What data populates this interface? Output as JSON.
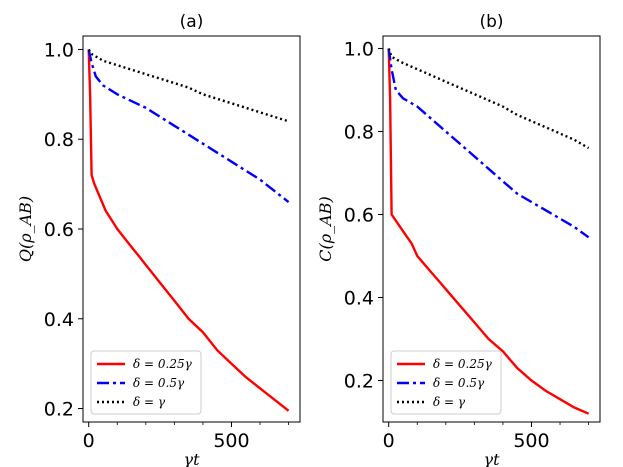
{
  "chart_data": [
    {
      "type": "line",
      "title": "(a)",
      "xlabel": "γt",
      "ylabel": "Q(ρ_AB)",
      "xlim": [
        -20,
        740
      ],
      "ylim": [
        0.17,
        1.03
      ],
      "xticks": [
        0,
        500
      ],
      "xtick_labels": [
        "0",
        "500"
      ],
      "yticks": [
        0.2,
        0.4,
        0.6,
        0.8,
        1.0
      ],
      "ytick_labels": [
        "0.2",
        "0.4",
        "0.6",
        "0.8",
        "1.0"
      ],
      "legend_position": "lower-left",
      "series": [
        {
          "name": "δ = 0.25γ",
          "color": "#ff0000",
          "style": "solid",
          "x": [
            0,
            5,
            10,
            20,
            40,
            60,
            80,
            100,
            125,
            150,
            175,
            200,
            250,
            300,
            350,
            400,
            450,
            500,
            550,
            600,
            650,
            700
          ],
          "values": [
            1.0,
            0.9,
            0.72,
            0.7,
            0.67,
            0.64,
            0.62,
            0.6,
            0.58,
            0.56,
            0.54,
            0.52,
            0.48,
            0.44,
            0.4,
            0.37,
            0.33,
            0.3,
            0.27,
            0.245,
            0.22,
            0.195
          ]
        },
        {
          "name": "δ = 0.5γ",
          "color": "#0000ff",
          "style": "dashdot",
          "x": [
            0,
            10,
            25,
            50,
            100,
            150,
            200,
            250,
            300,
            350,
            400,
            450,
            500,
            550,
            600,
            650,
            700
          ],
          "values": [
            1.0,
            0.97,
            0.94,
            0.92,
            0.9,
            0.885,
            0.87,
            0.85,
            0.83,
            0.81,
            0.79,
            0.77,
            0.75,
            0.73,
            0.71,
            0.685,
            0.66
          ]
        },
        {
          "name": "δ = γ",
          "color": "#000000",
          "style": "dotted",
          "x": [
            0,
            10,
            50,
            100,
            150,
            200,
            250,
            300,
            350,
            400,
            450,
            500,
            550,
            600,
            650,
            700
          ],
          "values": [
            1.0,
            0.99,
            0.975,
            0.965,
            0.955,
            0.945,
            0.935,
            0.925,
            0.915,
            0.9,
            0.89,
            0.88,
            0.87,
            0.86,
            0.85,
            0.84
          ]
        }
      ]
    },
    {
      "type": "line",
      "title": "(b)",
      "xlabel": "γt",
      "ylabel": "C(ρ_AB)",
      "xlim": [
        -20,
        740
      ],
      "ylim": [
        0.1,
        1.03
      ],
      "xticks": [
        0,
        500
      ],
      "xtick_labels": [
        "0",
        "500"
      ],
      "yticks": [
        0.2,
        0.4,
        0.6,
        0.8,
        1.0
      ],
      "ytick_labels": [
        "0.2",
        "0.4",
        "0.6",
        "0.8",
        "1.0"
      ],
      "legend_position": "lower-left",
      "series": [
        {
          "name": "δ = 0.25γ",
          "color": "#ff0000",
          "style": "solid",
          "x": [
            0,
            5,
            10,
            20,
            40,
            60,
            80,
            100,
            125,
            150,
            175,
            200,
            250,
            300,
            350,
            400,
            450,
            500,
            550,
            600,
            650,
            700
          ],
          "values": [
            1.0,
            0.88,
            0.6,
            0.59,
            0.57,
            0.55,
            0.53,
            0.5,
            0.48,
            0.46,
            0.44,
            0.42,
            0.38,
            0.34,
            0.3,
            0.27,
            0.23,
            0.2,
            0.175,
            0.155,
            0.135,
            0.12
          ]
        },
        {
          "name": "δ = 0.5γ",
          "color": "#0000ff",
          "style": "dashdot",
          "x": [
            0,
            10,
            25,
            50,
            100,
            150,
            200,
            250,
            300,
            350,
            400,
            450,
            500,
            550,
            600,
            650,
            700
          ],
          "values": [
            1.0,
            0.95,
            0.9,
            0.88,
            0.86,
            0.83,
            0.8,
            0.77,
            0.74,
            0.71,
            0.68,
            0.65,
            0.63,
            0.61,
            0.59,
            0.57,
            0.545
          ]
        },
        {
          "name": "δ = γ",
          "color": "#000000",
          "style": "dotted",
          "x": [
            0,
            10,
            50,
            100,
            150,
            200,
            250,
            300,
            350,
            400,
            450,
            500,
            550,
            600,
            650,
            700
          ],
          "values": [
            1.0,
            0.98,
            0.965,
            0.95,
            0.935,
            0.92,
            0.905,
            0.89,
            0.875,
            0.86,
            0.84,
            0.825,
            0.81,
            0.795,
            0.78,
            0.76
          ]
        }
      ]
    }
  ]
}
